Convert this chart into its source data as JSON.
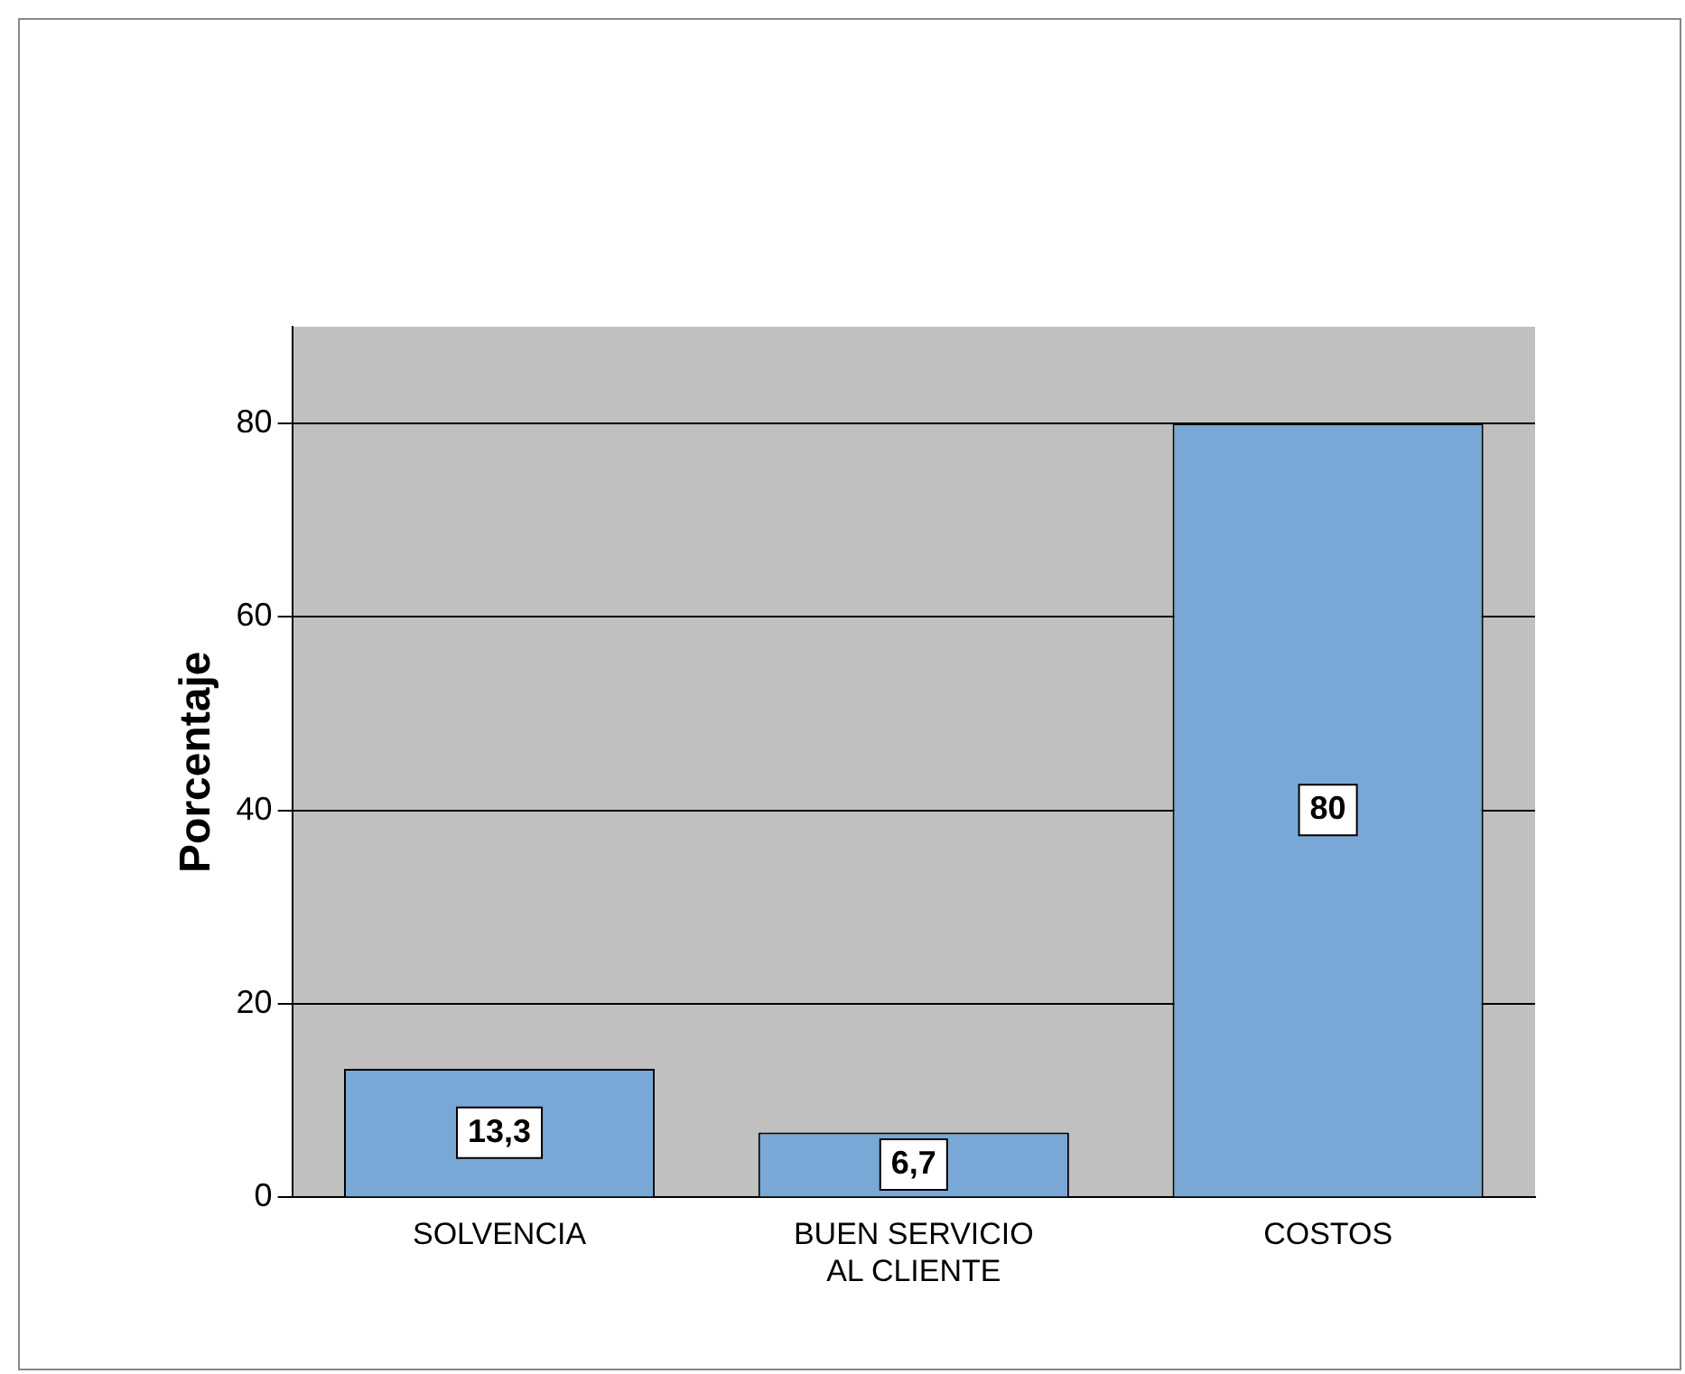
{
  "chart_data": {
    "type": "bar",
    "ylabel": "Porcentaje",
    "categories": [
      "SOLVENCIA",
      "BUEN SERVICIO AL CLIENTE",
      "COSTOS"
    ],
    "values": [
      13.3,
      6.7,
      80
    ],
    "value_labels": [
      "13,3",
      "6,7",
      "80"
    ],
    "color": "#7aa8d6",
    "ylim": [
      0,
      90
    ],
    "yticks": [
      0,
      20,
      40,
      60,
      80
    ],
    "grid": "y"
  }
}
